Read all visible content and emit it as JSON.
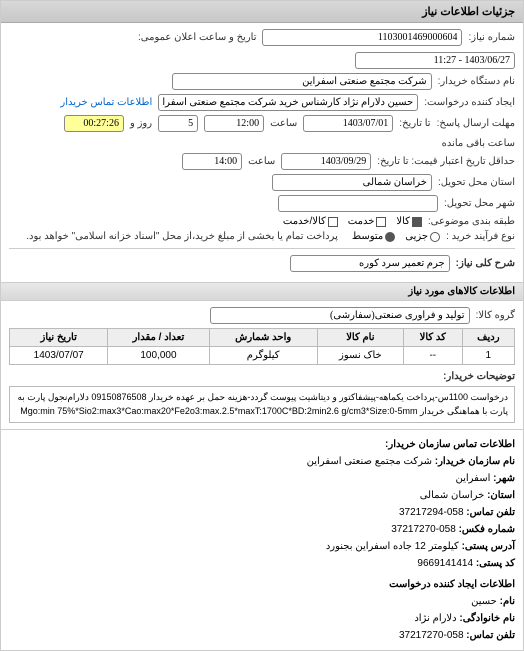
{
  "titlebar": "جزئیات اطلاعات نیاز",
  "fields": {
    "shomare_niaz_label": "شماره نیاز:",
    "shomare_niaz_value": "1103001469000604",
    "tarikh_elan_label": "تاریخ و ساعت اعلان عمومی:",
    "tarikh_elan_value": "1403/06/27 - 11:27",
    "nam_dastgah_label": "نام دستگاه خریدار:",
    "nam_dastgah_value": "شرکت مجتمع صنعتی اسفراین",
    "ijad_konande_label": "ایجاد کننده درخواست:",
    "ijad_konande_value": "حسین دلارام نژاد کارشناس خرید شرکت مجتمع صنعتی اسفراین",
    "etelaat_tamas_label": "اطلاعات تماس خریدار",
    "mohlat_ersal_label": "مهلت ارسال پاسخ:",
    "ta_tarikh_label": "تا تاریخ:",
    "ta_tarikh_value": "1403/07/01",
    "saat_label": "ساعت",
    "saat_value": "12:00",
    "rooz_value": "5",
    "rooz_label": "روز و",
    "countdown_value": "00:27:26",
    "baghi_mande_label": "ساعت باقی مانده",
    "hadaghal_tarikh_label": "حداقل تاریخ اعتبار قیمت: تا تاریخ:",
    "hadaghal_tarikh_value": "1403/09/29",
    "hadaghal_saat_value": "14:00",
    "ostan_label": "استان محل تحویل:",
    "ostan_value": "خراسان شمالی",
    "shahr_label": "شهر محل تحویل:",
    "tabaghe_label": "طبقه بندی موضوعی:",
    "noe_faraind_label": "نوع فرآیند خرید :",
    "payment_note": "پرداخت تمام یا بخشی از مبلغ خرید،از محل \"اسناد خزانه اسلامی\" خواهد بود."
  },
  "classification": {
    "kala": {
      "label": "کالا",
      "checked": true
    },
    "khadamat": {
      "label": "خدمت",
      "checked": false
    },
    "kala_khadamat": {
      "label": "کالا/خدمت",
      "checked": false
    }
  },
  "process_type": {
    "jozei": {
      "label": "جزیی",
      "selected": false
    },
    "motevaset": {
      "label": "متوسط",
      "selected": true
    }
  },
  "sharh_koli_label": "شرح کلی نیاز:",
  "sharh_koli_value": "جرم تعمیر سرد کوره",
  "goods_section_title": "اطلاعات کالاهای مورد نیاز",
  "gorooh_kala_label": "گروه کالا:",
  "gorooh_kala_value": "تولید و فرآوری صنعتی(سفارشی)",
  "table": {
    "headers": [
      "ردیف",
      "کد کالا",
      "نام کالا",
      "واحد شمارش",
      "تعداد / مقدار",
      "تاریخ نیاز"
    ],
    "rows": [
      [
        "1",
        "--",
        "خاک نسوز",
        "کیلوگرم",
        "100,000",
        "1403/07/07"
      ]
    ]
  },
  "tozihat_label": "توضیحات خریدار:",
  "tozihat_text": "درخواست 1100س-پرداخت یکماهه-پیشفاکتور و دیتاشیت پیوست گردد-هزینه حمل بر عهده خریدار 09150876508 دلارام‌نجول پارت به پارت با هماهنگی خریدار Mgo:min 75%*Sio2:max3*Cao:max20*Fe2o3:max.2.5*maxT:1700C*BD:2min2.6 g/cm3*Size:0-5mm",
  "contact": {
    "heading": "اطلاعات تماس سازمان خریدار:",
    "nam_sazman_label": "نام سازمان خریدار:",
    "nam_sazman_value": "شرکت مجتمع صنعتی اسفراین",
    "shahr_label": "شهر:",
    "shahr_value": "اسفراین",
    "ostan_label": "استان:",
    "ostan_value": "خراسان شمالی",
    "tel_tamas_label": "تلفن تماس:",
    "tel_tamas_value": "058-37217294",
    "shomare_faks_label": "شماره فکس:",
    "shomare_faks_value": "058-37217270",
    "address_label": "آدرس پستی:",
    "address_value": "کیلومتر 12 جاده اسفراین بجنورد",
    "kode_posti_label": "کد پستی:",
    "kode_posti_value": "9669141414",
    "ijad_heading": "اطلاعات ایجاد کننده درخواست",
    "nam_label": "نام:",
    "nam_value": "حسین",
    "nam_khanevadegi_label": "نام خانوادگی:",
    "nam_khanevadegi_value": "دلارام نژاد",
    "tel_tamas2_label": "تلفن تماس:",
    "tel_tamas2_value": "058-37217270"
  },
  "colors": {
    "titlebar_bg": "#d0d0d0",
    "border": "#cccccc",
    "highlight": "#ffff99"
  }
}
